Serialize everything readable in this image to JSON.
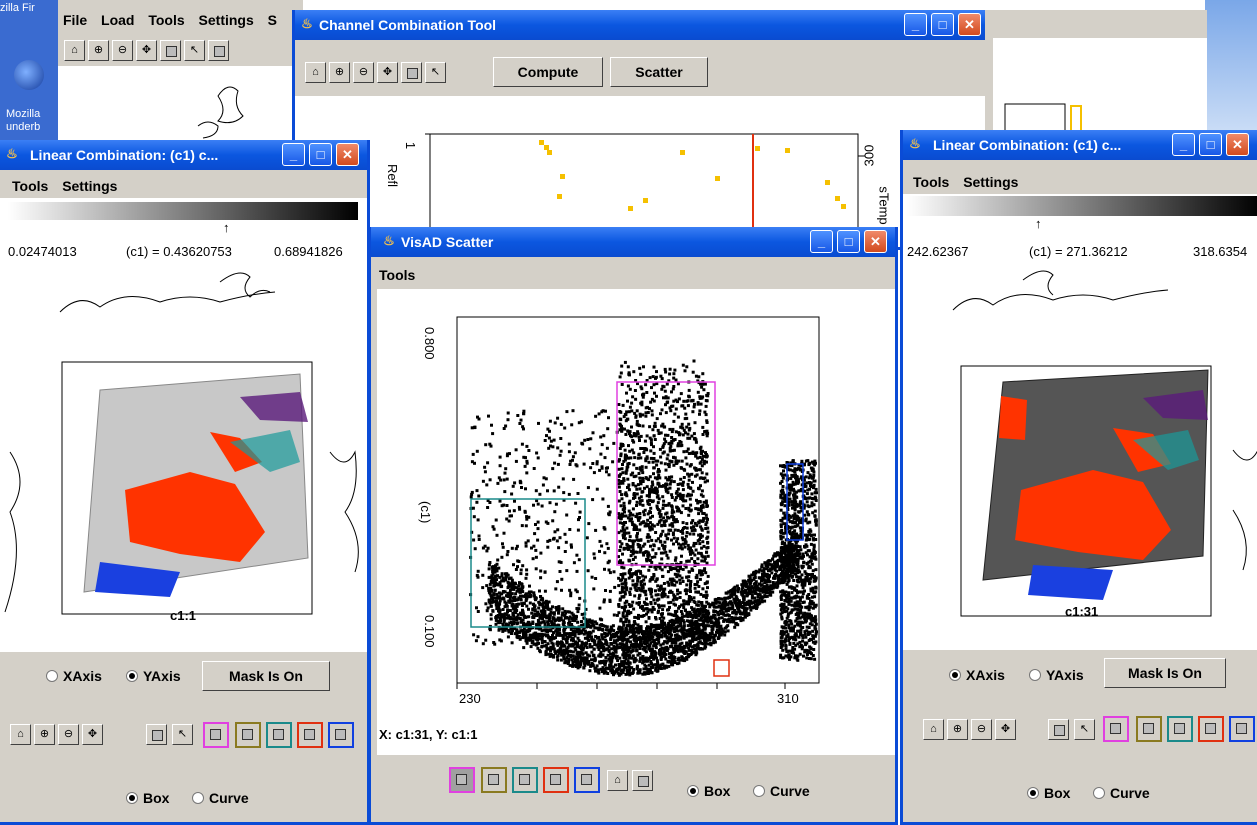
{
  "desktop": {
    "firefox_partial": "zilla Fir",
    "mozilla_label_1": "Mozilla",
    "mozilla_label_2": "underb"
  },
  "bg_window": {
    "menu": [
      "File",
      "Load",
      "Tools",
      "Settings",
      "S"
    ]
  },
  "channel_tool": {
    "title": "Channel Combination Tool",
    "compute_label": "Compute",
    "scatter_label": "Scatter",
    "ylabel_left": "Refl",
    "ylabel_right": "sTemp",
    "y_tick_left": "1",
    "y_tick_right": "300"
  },
  "left_window": {
    "title": "Linear Combination: (c1) c...",
    "menu": [
      "Tools",
      "Settings"
    ],
    "range_min": "0.02474013",
    "range_mid": "(c1) = 0.43620753",
    "range_max": "0.68941826",
    "image_label": "c1:1",
    "xaxis_label": "XAxis",
    "yaxis_label": "YAxis",
    "mask_label": "Mask Is On",
    "box_label": "Box",
    "curve_label": "Curve"
  },
  "right_window": {
    "title": "Linear Combination: (c1) c...",
    "menu": [
      "Tools",
      "Settings"
    ],
    "range_min": "242.62367",
    "range_mid": "(c1) = 271.36212",
    "range_max": "318.6354",
    "image_label": "c1:31",
    "xaxis_label": "XAxis",
    "yaxis_label": "YAxis",
    "mask_label": "Mask Is On",
    "box_label": "Box",
    "curve_label": "Curve"
  },
  "scatter_window": {
    "title": "VisAD Scatter",
    "menu": [
      "Tools"
    ],
    "y_tick_top": "0.800",
    "y_tick_bottom": "0.100",
    "ylabel": "(c1)",
    "x_tick_left": "230",
    "x_tick_right": "310",
    "status": "X: c1:31,  Y: c1:1",
    "box_label": "Box",
    "curve_label": "Curve"
  },
  "colors": {
    "titlebar": "#0b57e0",
    "panel": "#d4d0c8",
    "mask_red": "#ff3300",
    "sel_magenta": "#e040e0",
    "sel_olive": "#8a7a20",
    "sel_teal": "#1a8a8a",
    "sel_red": "#e03010",
    "sel_blue": "#1040e0"
  }
}
